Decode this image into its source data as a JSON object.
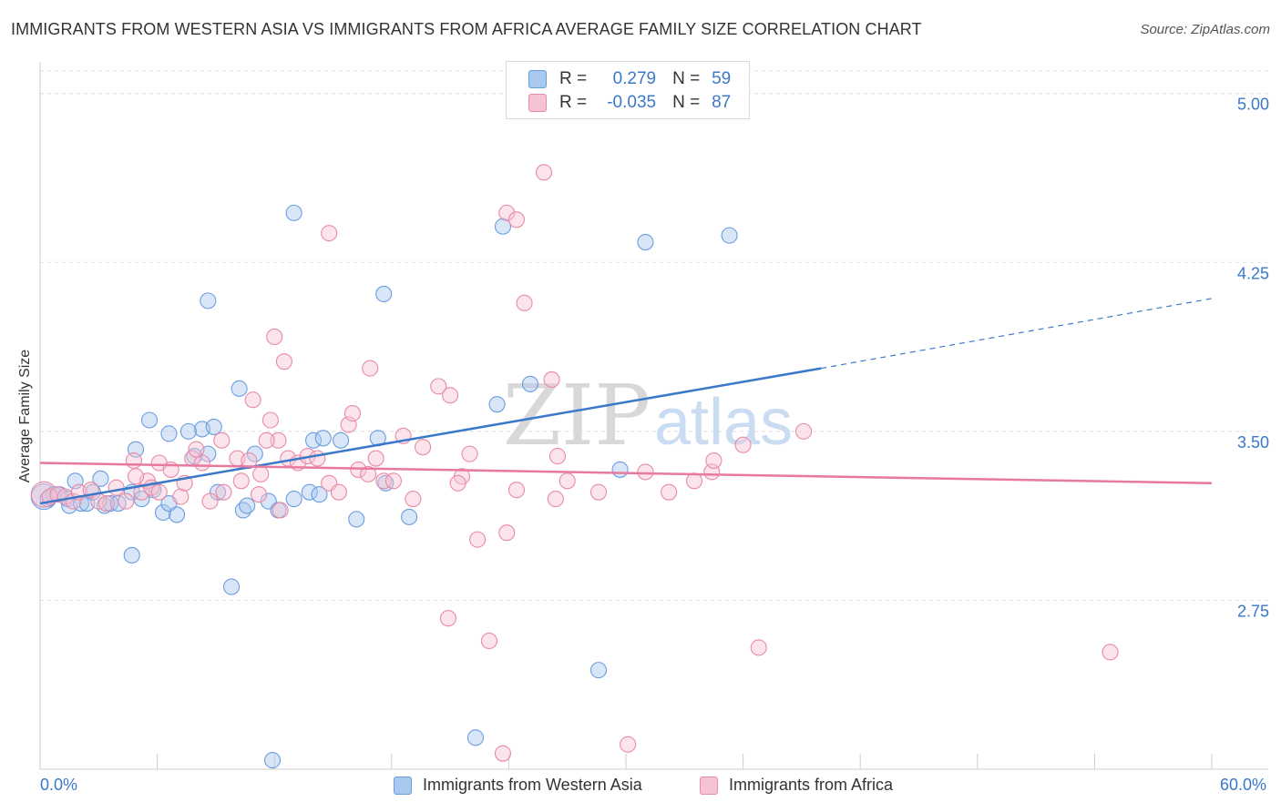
{
  "title": "IMMIGRANTS FROM WESTERN ASIA VS IMMIGRANTS FROM AFRICA AVERAGE FAMILY SIZE CORRELATION CHART",
  "source": "Source: ZipAtlas.com",
  "watermark": {
    "zip": "ZIP",
    "atlas": "atlas"
  },
  "legend_top": {
    "r_label": "R =",
    "n_label": "N =",
    "series": [
      {
        "r": "0.279",
        "n": "59",
        "color": "#a9c8ef",
        "border": "#6a9de0"
      },
      {
        "r": "-0.035",
        "n": "87",
        "color": "#f7c3d3",
        "border": "#e88aa8"
      }
    ]
  },
  "colors": {
    "blue_line": "#3a78c9",
    "pink_line": "#e8799f",
    "blue_dot": "#6a9de0",
    "pink_dot": "#e88aa8",
    "axis_text": "#3a78c9"
  },
  "chart_data": {
    "type": "scatter",
    "title": "IMMIGRANTS FROM WESTERN ASIA VS IMMIGRANTS FROM AFRICA AVERAGE FAMILY SIZE CORRELATION CHART",
    "xlabel": "",
    "ylabel": "Average Family Size",
    "xlim": [
      0,
      60
    ],
    "ylim": [
      2.0,
      5.1
    ],
    "x_tick_labels": [
      "0.0%",
      "60.0%"
    ],
    "y_ticks": [
      2.75,
      3.5,
      4.25,
      5.0
    ],
    "y_tick_labels": [
      "2.75",
      "3.50",
      "4.25",
      "5.00"
    ],
    "grid": "horizontal dashed",
    "legend_placement": "top-center and bottom",
    "series": [
      {
        "name": "Immigrants from Western Asia",
        "color": "#6a9de0",
        "trend": {
          "x": [
            0,
            40
          ],
          "y": [
            3.18,
            3.78
          ],
          "dashed_to": [
            60,
            4.09
          ]
        },
        "points": [
          [
            0.2,
            3.21
          ],
          [
            0.4,
            3.2
          ],
          [
            0.7,
            3.22
          ],
          [
            1.0,
            3.22
          ],
          [
            1.4,
            3.2
          ],
          [
            1.5,
            3.17
          ],
          [
            1.8,
            3.28
          ],
          [
            2.1,
            3.18
          ],
          [
            2.4,
            3.18
          ],
          [
            2.7,
            3.23
          ],
          [
            3.3,
            3.17
          ],
          [
            3.6,
            3.18
          ],
          [
            4.0,
            3.18
          ],
          [
            4.7,
            3.23
          ],
          [
            4.9,
            3.42
          ],
          [
            5.2,
            3.2
          ],
          [
            5.8,
            3.24
          ],
          [
            6.3,
            3.14
          ],
          [
            6.6,
            3.18
          ],
          [
            7.0,
            3.13
          ],
          [
            7.9,
            3.39
          ],
          [
            8.6,
            3.4
          ],
          [
            9.1,
            3.23
          ],
          [
            10.4,
            3.15
          ],
          [
            10.6,
            3.17
          ],
          [
            11.7,
            3.19
          ],
          [
            13.8,
            3.23
          ],
          [
            14.0,
            3.46
          ],
          [
            14.3,
            3.22
          ],
          [
            15.4,
            3.46
          ],
          [
            16.2,
            3.11
          ],
          [
            17.7,
            3.27
          ],
          [
            18.9,
            3.12
          ],
          [
            4.7,
            2.95
          ],
          [
            9.8,
            2.81
          ],
          [
            11.9,
            2.04
          ],
          [
            14.5,
            3.47
          ],
          [
            17.3,
            3.47
          ],
          [
            8.3,
            3.51
          ],
          [
            3.1,
            3.29
          ],
          [
            5.6,
            3.55
          ],
          [
            6.6,
            3.49
          ],
          [
            7.6,
            3.5
          ],
          [
            8.9,
            3.52
          ],
          [
            10.2,
            3.69
          ],
          [
            11.0,
            3.4
          ],
          [
            22.3,
            2.14
          ],
          [
            28.6,
            2.44
          ],
          [
            29.7,
            3.33
          ],
          [
            23.4,
            3.62
          ],
          [
            25.1,
            3.71
          ],
          [
            8.6,
            4.08
          ],
          [
            13.0,
            4.47
          ],
          [
            17.6,
            4.11
          ],
          [
            23.7,
            4.41
          ],
          [
            31.0,
            4.34
          ],
          [
            35.3,
            4.37
          ],
          [
            12.2,
            3.15
          ],
          [
            13.0,
            3.2
          ]
        ]
      },
      {
        "name": "Immigrants from Africa",
        "color": "#e88aa8",
        "trend": {
          "x": [
            0,
            60
          ],
          "y": [
            3.36,
            3.27
          ]
        },
        "points": [
          [
            0.2,
            3.22
          ],
          [
            0.5,
            3.21
          ],
          [
            0.9,
            3.22
          ],
          [
            1.3,
            3.21
          ],
          [
            1.7,
            3.19
          ],
          [
            2.0,
            3.23
          ],
          [
            2.6,
            3.24
          ],
          [
            3.0,
            3.19
          ],
          [
            3.4,
            3.18
          ],
          [
            3.9,
            3.25
          ],
          [
            4.4,
            3.19
          ],
          [
            4.8,
            3.37
          ],
          [
            5.2,
            3.23
          ],
          [
            5.5,
            3.28
          ],
          [
            6.1,
            3.36
          ],
          [
            6.7,
            3.33
          ],
          [
            7.2,
            3.21
          ],
          [
            7.8,
            3.38
          ],
          [
            8.3,
            3.36
          ],
          [
            8.7,
            3.19
          ],
          [
            9.4,
            3.23
          ],
          [
            10.1,
            3.38
          ],
          [
            10.7,
            3.37
          ],
          [
            11.3,
            3.31
          ],
          [
            11.8,
            3.55
          ],
          [
            12.2,
            3.46
          ],
          [
            12.7,
            3.38
          ],
          [
            13.2,
            3.36
          ],
          [
            13.7,
            3.39
          ],
          [
            14.2,
            3.38
          ],
          [
            14.8,
            3.27
          ],
          [
            15.3,
            3.23
          ],
          [
            15.8,
            3.53
          ],
          [
            16.3,
            3.33
          ],
          [
            16.8,
            3.31
          ],
          [
            17.2,
            3.38
          ],
          [
            17.6,
            3.28
          ],
          [
            18.1,
            3.28
          ],
          [
            18.6,
            3.48
          ],
          [
            19.1,
            3.2
          ],
          [
            19.6,
            3.43
          ],
          [
            20.4,
            3.7
          ],
          [
            21.0,
            3.66
          ],
          [
            21.6,
            3.3
          ],
          [
            8.0,
            3.42
          ],
          [
            9.3,
            3.46
          ],
          [
            10.9,
            3.64
          ],
          [
            11.6,
            3.46
          ],
          [
            12.5,
            3.81
          ],
          [
            12.0,
            3.92
          ],
          [
            16.0,
            3.58
          ],
          [
            16.9,
            3.78
          ],
          [
            26.2,
            3.73
          ],
          [
            26.4,
            3.2
          ],
          [
            24.4,
            3.24
          ],
          [
            5.7,
            3.25
          ],
          [
            4.9,
            3.3
          ],
          [
            6.1,
            3.23
          ],
          [
            7.4,
            3.27
          ],
          [
            12.3,
            3.15
          ],
          [
            14.8,
            4.38
          ],
          [
            23.9,
            4.47
          ],
          [
            24.4,
            4.44
          ],
          [
            24.8,
            4.07
          ],
          [
            25.8,
            4.65
          ],
          [
            20.9,
            2.67
          ],
          [
            21.4,
            3.27
          ],
          [
            22.4,
            3.02
          ],
          [
            23.0,
            2.57
          ],
          [
            23.9,
            3.05
          ],
          [
            34.4,
            3.32
          ],
          [
            34.5,
            3.37
          ],
          [
            36.0,
            3.44
          ],
          [
            39.1,
            3.5
          ],
          [
            54.8,
            2.52
          ],
          [
            36.8,
            2.54
          ],
          [
            27.0,
            3.28
          ],
          [
            31.0,
            3.32
          ],
          [
            32.2,
            3.23
          ],
          [
            26.5,
            3.39
          ],
          [
            23.7,
            2.07
          ],
          [
            30.1,
            2.11
          ],
          [
            28.6,
            3.23
          ],
          [
            33.5,
            3.28
          ],
          [
            11.2,
            3.22
          ],
          [
            10.3,
            3.28
          ],
          [
            22.0,
            3.4
          ]
        ]
      }
    ]
  },
  "bottom_legend": [
    {
      "label": "Immigrants from Western Asia",
      "color": "#a9c8ef",
      "border": "#6a9de0"
    },
    {
      "label": "Immigrants from Africa",
      "color": "#f7c3d3",
      "border": "#e88aa8"
    }
  ]
}
